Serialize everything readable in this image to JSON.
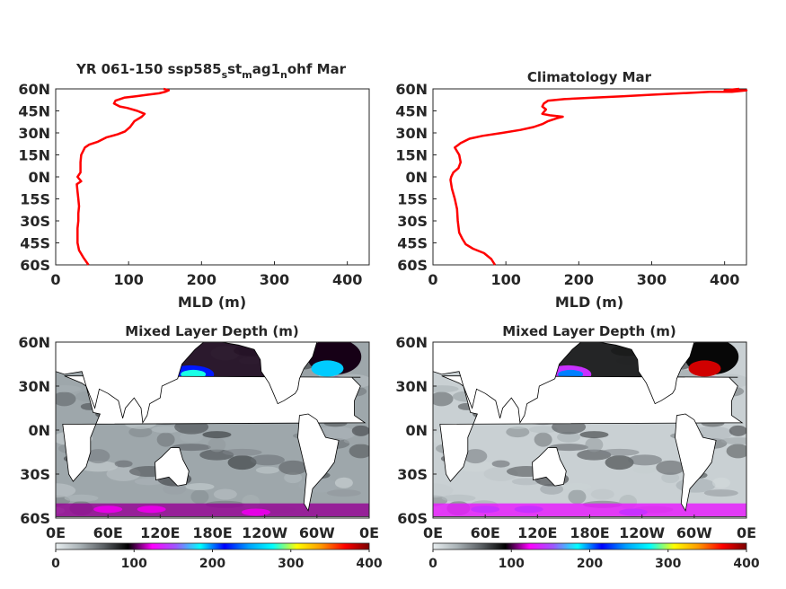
{
  "chart_data": [
    {
      "type": "line",
      "title_parts": [
        "YR 061-150 ssp585",
        "s",
        "st",
        "m",
        "ag1",
        "n",
        "ohf Mar"
      ],
      "xlabel": "MLD (m)",
      "xlim": [
        0,
        430
      ],
      "ylim": [
        -60,
        60
      ],
      "xticks": [
        "0",
        "100",
        "200",
        "300",
        "400"
      ],
      "yticks": [
        "60N",
        "45N",
        "30N",
        "15N",
        "0N",
        "15S",
        "30S",
        "45S",
        "60S"
      ],
      "color": "#ff0000",
      "series": [
        {
          "points": [
            [
              45,
              -60
            ],
            [
              38,
              -55
            ],
            [
              32,
              -50
            ],
            [
              30,
              -45
            ],
            [
              30,
              -40
            ],
            [
              30,
              -35
            ],
            [
              31,
              -30
            ],
            [
              31,
              -25
            ],
            [
              32,
              -20
            ],
            [
              31,
              -15
            ],
            [
              30,
              -10
            ],
            [
              29,
              -5
            ],
            [
              35,
              -3
            ],
            [
              30,
              0
            ],
            [
              34,
              3
            ],
            [
              34,
              6
            ],
            [
              34,
              10
            ],
            [
              35,
              15
            ],
            [
              40,
              20
            ],
            [
              46,
              22
            ],
            [
              58,
              24
            ],
            [
              70,
              27
            ],
            [
              85,
              29
            ],
            [
              95,
              31
            ],
            [
              102,
              34
            ],
            [
              108,
              38
            ],
            [
              118,
              41
            ],
            [
              122,
              43
            ],
            [
              112,
              45
            ],
            [
              98,
              47
            ],
            [
              88,
              48
            ],
            [
              80,
              50
            ],
            [
              82,
              52
            ],
            [
              94,
              54
            ],
            [
              110,
              55
            ],
            [
              126,
              56
            ],
            [
              142,
              57
            ],
            [
              150,
              58
            ],
            [
              155,
              59
            ],
            [
              148,
              60
            ]
          ]
        }
      ]
    },
    {
      "type": "line",
      "title": "Climatology Mar",
      "xlabel": "MLD (m)",
      "xlim": [
        0,
        430
      ],
      "ylim": [
        -60,
        60
      ],
      "xticks": [
        "0",
        "100",
        "200",
        "300",
        "400"
      ],
      "yticks": [
        "60N",
        "45N",
        "30N",
        "15N",
        "0N",
        "15S",
        "30S",
        "45S",
        "60S"
      ],
      "color": "#ff0000",
      "series": [
        {
          "points": [
            [
              85,
              -60
            ],
            [
              80,
              -56
            ],
            [
              70,
              -52
            ],
            [
              55,
              -49
            ],
            [
              45,
              -46
            ],
            [
              40,
              -42
            ],
            [
              36,
              -38
            ],
            [
              34,
              -30
            ],
            [
              33,
              -22
            ],
            [
              30,
              -15
            ],
            [
              26,
              -8
            ],
            [
              24,
              -2
            ],
            [
              25,
              0
            ],
            [
              28,
              3
            ],
            [
              35,
              6
            ],
            [
              38,
              10
            ],
            [
              36,
              15
            ],
            [
              30,
              20
            ],
            [
              38,
              23
            ],
            [
              50,
              26
            ],
            [
              68,
              28
            ],
            [
              95,
              30
            ],
            [
              120,
              32
            ],
            [
              138,
              34
            ],
            [
              150,
              36
            ],
            [
              158,
              38
            ],
            [
              170,
              40
            ],
            [
              178,
              41
            ],
            [
              160,
              42
            ],
            [
              150,
              43
            ],
            [
              155,
              46
            ],
            [
              150,
              48
            ],
            [
              152,
              50
            ],
            [
              158,
              52
            ],
            [
              180,
              53
            ],
            [
              220,
              54
            ],
            [
              260,
              55
            ],
            [
              300,
              56
            ],
            [
              340,
              57
            ],
            [
              380,
              58
            ],
            [
              410,
              58
            ],
            [
              430,
              59
            ],
            [
              400,
              59
            ],
            [
              420,
              60
            ]
          ]
        }
      ]
    },
    {
      "type": "heatmap",
      "title": "Mixed Layer Depth (m)",
      "xticks": [
        "0E",
        "60E",
        "120E",
        "180E",
        "120W",
        "60W",
        "0E"
      ],
      "yticks": [
        "60N",
        "30N",
        "0N",
        "30S",
        "60S"
      ],
      "colorbar": {
        "ticks": [
          "0",
          "100",
          "200",
          "300",
          "400"
        ],
        "range": [
          0,
          400
        ],
        "stops": [
          "#e8eef0",
          "#a9b2b6",
          "#5a5f63",
          "#000000",
          "#ff00ff",
          "#9b59ff",
          "#00ffff",
          "#0000ff",
          "#00a0ff",
          "#00ffff",
          "#ffff00",
          "#ff9900",
          "#ff0000",
          "#7a0000"
        ]
      },
      "ocean_base": "#9ea7ab",
      "features": [
        {
          "region": "kuroshio",
          "level": 220
        },
        {
          "region": "gulf-stream",
          "level": 260
        },
        {
          "region": "north-pacific-dark",
          "level": 95
        },
        {
          "region": "southern-band",
          "level": 110
        }
      ]
    },
    {
      "type": "heatmap",
      "title": "Mixed Layer Depth (m)",
      "xticks": [
        "0E",
        "60E",
        "120E",
        "180E",
        "120W",
        "60W",
        "0E"
      ],
      "yticks": [
        "60N",
        "30N",
        "0N",
        "30S",
        "60S"
      ],
      "colorbar": {
        "ticks": [
          "0",
          "100",
          "200",
          "300",
          "400"
        ],
        "range": [
          0,
          400
        ],
        "stops": [
          "#e8eef0",
          "#a9b2b6",
          "#5a5f63",
          "#000000",
          "#ff00ff",
          "#9b59ff",
          "#00ffff",
          "#0000ff",
          "#00a0ff",
          "#00ffff",
          "#ffff00",
          "#ff9900",
          "#ff0000",
          "#7a0000"
        ]
      },
      "ocean_base": "#c9d0d3",
      "features": [
        {
          "region": "kuroshio",
          "level": 140
        },
        {
          "region": "gulf-stream",
          "level": 380
        },
        {
          "region": "north-pacific-dark",
          "level": 90
        },
        {
          "region": "southern-band",
          "level": 130
        }
      ]
    }
  ]
}
